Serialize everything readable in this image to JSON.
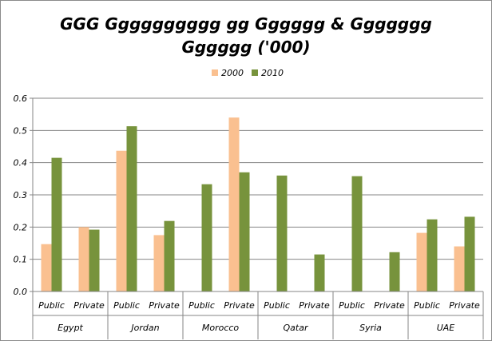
{
  "chart_data": {
    "type": "bar",
    "title_lines": [
      "GGG Gggggggggg gg Gggggg & Ggggggg",
      "Gggggg ('000)"
    ],
    "xlabel": "",
    "ylabel": "",
    "ylim": [
      0,
      0.6
    ],
    "yticks": [
      "0.0",
      "0.1",
      "0.2",
      "0.3",
      "0.4",
      "0.5",
      "0.6"
    ],
    "grid": true,
    "legend_position": "top",
    "groups": [
      "Egypt",
      "Jordan",
      "Morocco",
      "Qatar",
      "Syria",
      "UAE"
    ],
    "subcategories": [
      "Public",
      "Private"
    ],
    "categories": [
      "Public",
      "Private",
      "Public",
      "Private",
      "Public",
      "Private",
      "Public",
      "Private",
      "Public",
      "Private",
      "Public",
      "Private"
    ],
    "series": [
      {
        "name": "2000",
        "color": "#fac090",
        "values": [
          0.147,
          0.2,
          0.437,
          0.175,
          0,
          0.54,
          0,
          0,
          0,
          0,
          0.182,
          0.14
        ]
      },
      {
        "name": "2010",
        "color": "#77933c",
        "values": [
          0.415,
          0.192,
          0.513,
          0.219,
          0.333,
          0.37,
          0.36,
          0.115,
          0.358,
          0.122,
          0.224,
          0.232
        ]
      }
    ]
  }
}
